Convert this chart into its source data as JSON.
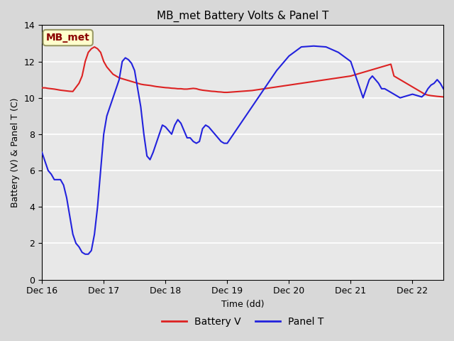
{
  "title": "MB_met Battery Volts & Panel T",
  "xlabel": "Time (dd)",
  "ylabel": "Battery (V) & Panel T (C)",
  "xlim": [
    0,
    6.5
  ],
  "ylim": [
    0,
    14
  ],
  "yticks": [
    0,
    2,
    4,
    6,
    8,
    10,
    12,
    14
  ],
  "xtick_labels": [
    "Dec 16",
    "Dec 17",
    "Dec 18",
    "Dec 19",
    "Dec 20",
    "Dec 21",
    "Dec 22"
  ],
  "xtick_positions": [
    0,
    1,
    2,
    3,
    4,
    5,
    6
  ],
  "annotation_text": "MB_met",
  "bg_color": "#e8e8e8",
  "plot_bg": "#f0f0f0",
  "grid_color": "#ffffff",
  "battery_color": "#dd2222",
  "panel_color": "#2222dd",
  "legend_dash": "—",
  "battery_v": {
    "x": [
      0.0,
      0.05,
      0.1,
      0.15,
      0.2,
      0.25,
      0.3,
      0.35,
      0.4,
      0.45,
      0.5,
      0.6,
      0.65,
      0.7,
      0.75,
      0.8,
      0.85,
      0.9,
      0.95,
      1.0,
      1.05,
      1.1,
      1.15,
      1.2,
      1.25,
      1.3,
      1.35,
      1.4,
      1.45,
      1.5,
      1.55,
      1.6,
      1.65,
      1.7,
      1.75,
      1.8,
      1.85,
      1.9,
      1.95,
      2.0,
      2.05,
      2.1,
      2.15,
      2.2,
      2.25,
      2.3,
      2.35,
      2.4,
      2.45,
      2.5,
      2.55,
      2.6,
      2.65,
      2.7,
      2.75,
      2.8,
      2.85,
      2.9,
      2.95,
      3.0,
      3.2,
      3.4,
      3.6,
      3.8,
      4.0,
      4.2,
      4.4,
      4.6,
      4.8,
      5.0,
      5.1,
      5.15,
      5.2,
      5.3,
      5.4,
      5.5,
      5.6,
      5.65,
      5.7,
      5.75,
      5.8,
      5.85,
      5.9,
      5.95,
      6.0,
      6.05,
      6.1,
      6.15,
      6.2,
      6.25,
      6.3,
      6.35,
      6.4,
      6.5
    ],
    "y": [
      10.55,
      10.55,
      10.52,
      10.5,
      10.48,
      10.45,
      10.42,
      10.4,
      10.38,
      10.36,
      10.35,
      10.8,
      11.2,
      12.0,
      12.5,
      12.7,
      12.8,
      12.7,
      12.5,
      12.0,
      11.7,
      11.5,
      11.3,
      11.2,
      11.1,
      11.05,
      11.0,
      10.95,
      10.9,
      10.85,
      10.8,
      10.75,
      10.72,
      10.7,
      10.68,
      10.65,
      10.62,
      10.6,
      10.58,
      10.56,
      10.55,
      10.53,
      10.52,
      10.5,
      10.5,
      10.48,
      10.48,
      10.5,
      10.52,
      10.5,
      10.45,
      10.42,
      10.4,
      10.38,
      10.36,
      10.35,
      10.33,
      10.32,
      10.3,
      10.3,
      10.35,
      10.4,
      10.5,
      10.6,
      10.7,
      10.8,
      10.9,
      11.0,
      11.1,
      11.2,
      11.3,
      11.35,
      11.4,
      11.5,
      11.6,
      11.7,
      11.8,
      11.85,
      11.2,
      11.1,
      11.0,
      10.9,
      10.8,
      10.7,
      10.6,
      10.5,
      10.4,
      10.3,
      10.2,
      10.15,
      10.12,
      10.1,
      10.08,
      10.05
    ]
  },
  "panel_t": {
    "x": [
      0.0,
      0.05,
      0.1,
      0.15,
      0.2,
      0.25,
      0.3,
      0.35,
      0.4,
      0.45,
      0.5,
      0.55,
      0.6,
      0.65,
      0.7,
      0.75,
      0.8,
      0.85,
      0.9,
      0.95,
      1.0,
      1.05,
      1.1,
      1.15,
      1.2,
      1.25,
      1.3,
      1.35,
      1.4,
      1.45,
      1.5,
      1.55,
      1.6,
      1.65,
      1.7,
      1.75,
      1.8,
      1.85,
      1.9,
      1.95,
      2.0,
      2.05,
      2.1,
      2.15,
      2.2,
      2.25,
      2.3,
      2.35,
      2.4,
      2.45,
      2.5,
      2.55,
      2.6,
      2.65,
      2.7,
      2.75,
      2.8,
      2.85,
      2.9,
      2.95,
      3.0,
      3.2,
      3.4,
      3.6,
      3.8,
      4.0,
      4.2,
      4.4,
      4.6,
      4.8,
      5.0,
      5.05,
      5.1,
      5.15,
      5.2,
      5.25,
      5.3,
      5.35,
      5.4,
      5.45,
      5.5,
      5.55,
      5.6,
      5.65,
      5.7,
      5.75,
      5.8,
      5.85,
      5.9,
      5.95,
      6.0,
      6.05,
      6.1,
      6.15,
      6.2,
      6.25,
      6.3,
      6.35,
      6.4,
      6.45,
      6.5
    ],
    "y": [
      7.0,
      6.5,
      6.0,
      5.8,
      5.5,
      5.5,
      5.5,
      5.2,
      4.5,
      3.5,
      2.5,
      2.0,
      1.8,
      1.5,
      1.4,
      1.4,
      1.6,
      2.5,
      4.0,
      6.0,
      8.0,
      9.0,
      9.5,
      10.0,
      10.5,
      11.0,
      12.0,
      12.2,
      12.1,
      11.9,
      11.5,
      10.5,
      9.5,
      8.0,
      6.8,
      6.6,
      7.0,
      7.5,
      8.0,
      8.5,
      8.4,
      8.2,
      8.0,
      8.5,
      8.8,
      8.6,
      8.2,
      7.8,
      7.8,
      7.6,
      7.5,
      7.6,
      8.3,
      8.5,
      8.4,
      8.2,
      8.0,
      7.8,
      7.6,
      7.5,
      7.5,
      8.5,
      9.5,
      10.5,
      11.5,
      12.3,
      12.8,
      12.85,
      12.8,
      12.5,
      12.0,
      11.5,
      11.0,
      10.5,
      10.0,
      10.5,
      11.0,
      11.2,
      11.0,
      10.8,
      10.5,
      10.5,
      10.4,
      10.3,
      10.2,
      10.1,
      10.0,
      10.05,
      10.1,
      10.15,
      10.2,
      10.15,
      10.1,
      10.05,
      10.2,
      10.5,
      10.7,
      10.8,
      11.0,
      10.8,
      10.5
    ]
  }
}
